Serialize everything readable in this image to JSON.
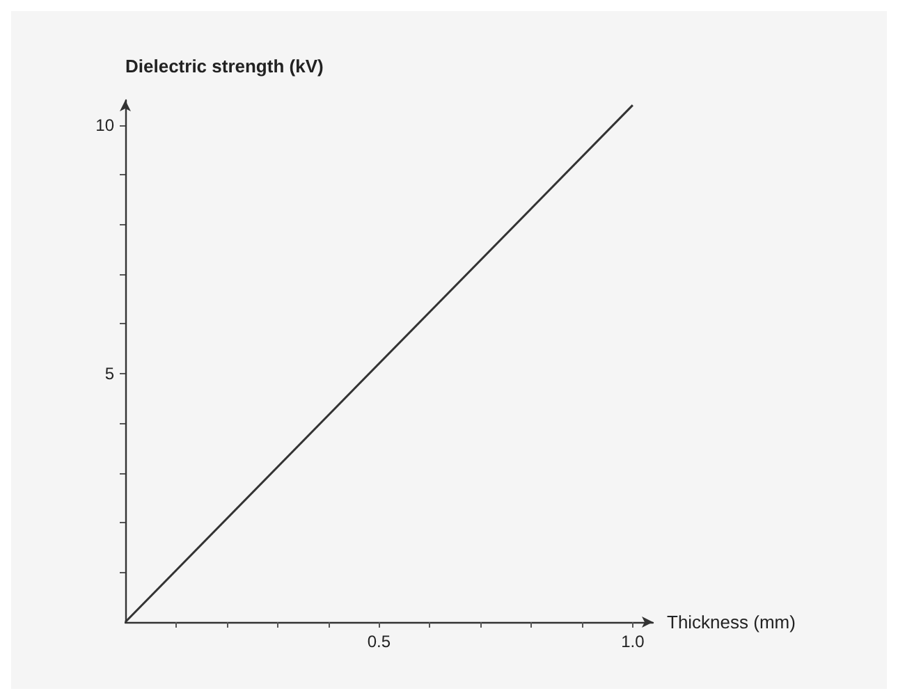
{
  "chart_data": {
    "type": "line",
    "xlabel": "Thickness (mm)",
    "ylabel": "Dielectric strength (kV)",
    "x": [
      0,
      1.0
    ],
    "series": [
      {
        "color": "#333333",
        "values": [
          0,
          10.4
        ]
      }
    ],
    "xlim": [
      0,
      1.04
    ],
    "xticks": [
      {
        "value": 0.1,
        "label": null
      },
      {
        "value": 0.2,
        "label": null
      },
      {
        "value": 0.3,
        "label": null
      },
      {
        "value": 0.4,
        "label": null
      },
      {
        "value": 0.5,
        "label": "0.5"
      },
      {
        "value": 0.6,
        "label": null
      },
      {
        "value": 0.7,
        "label": null
      },
      {
        "value": 0.8,
        "label": null
      },
      {
        "value": 0.9,
        "label": null
      },
      {
        "value": 1.0,
        "label": "1.0"
      }
    ],
    "ylim": [
      0,
      10.5
    ],
    "yticks": [
      {
        "value": 1,
        "label": null
      },
      {
        "value": 2,
        "label": null
      },
      {
        "value": 3,
        "label": null
      },
      {
        "value": 4,
        "label": null
      },
      5,
      {
        "value": 6,
        "label": null
      },
      {
        "value": 7,
        "label": null
      },
      {
        "value": 8,
        "label": null
      },
      {
        "value": 9,
        "label": null
      },
      10
    ],
    "grid": false,
    "marker": "none",
    "line_style": "solid"
  }
}
